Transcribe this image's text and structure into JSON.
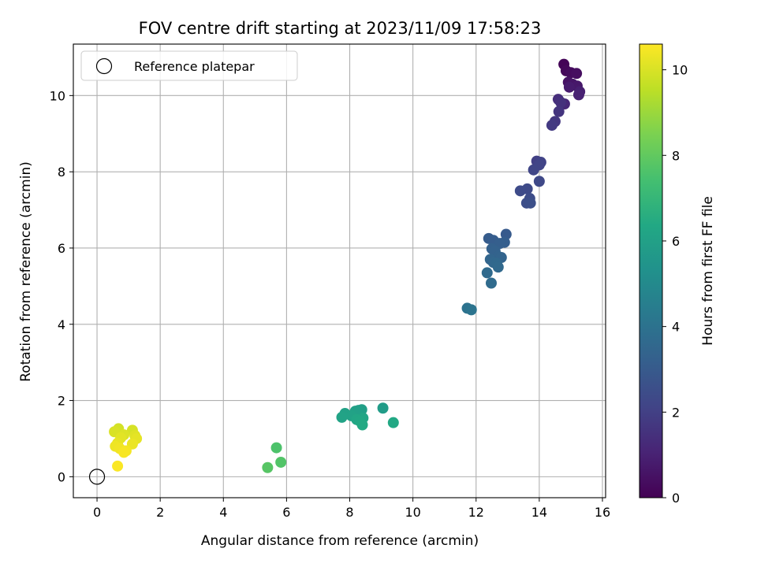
{
  "chart_data": {
    "type": "scatter",
    "title": "FOV centre drift starting at 2023/11/09 17:58:23",
    "xlabel": "Angular distance from reference (arcmin)",
    "ylabel": "Rotation from reference (arcmin)",
    "xlim": [
      -0.75,
      16.1
    ],
    "ylim": [
      -0.55,
      11.35
    ],
    "xticks": [
      0,
      2,
      4,
      6,
      8,
      10,
      12,
      14,
      16
    ],
    "yticks": [
      0,
      2,
      4,
      6,
      8,
      10
    ],
    "grid": true,
    "legend": {
      "position": "top-left",
      "entries": [
        {
          "label": "Reference platepar",
          "marker": "open-circle"
        }
      ]
    },
    "reference_point": {
      "x": 0,
      "y": 0
    },
    "colorbar": {
      "label": "Hours from first FF file",
      "colormap": "viridis",
      "range": [
        0,
        10.6
      ],
      "ticks": [
        0,
        2,
        4,
        6,
        8,
        10
      ]
    },
    "series": [
      {
        "points": [
          {
            "x": 14.78,
            "y": 10.82,
            "c": 0.1
          },
          {
            "x": 14.85,
            "y": 10.65,
            "c": 0.2
          },
          {
            "x": 15.0,
            "y": 10.6,
            "c": 0.3
          },
          {
            "x": 15.18,
            "y": 10.58,
            "c": 0.4
          },
          {
            "x": 14.92,
            "y": 10.35,
            "c": 0.5
          },
          {
            "x": 15.05,
            "y": 10.3,
            "c": 0.6
          },
          {
            "x": 15.2,
            "y": 10.25,
            "c": 0.7
          },
          {
            "x": 14.95,
            "y": 10.22,
            "c": 0.8
          },
          {
            "x": 15.28,
            "y": 10.1,
            "c": 0.9
          },
          {
            "x": 15.25,
            "y": 10.02,
            "c": 1.0
          },
          {
            "x": 14.8,
            "y": 9.78,
            "c": 1.2
          },
          {
            "x": 14.6,
            "y": 9.9,
            "c": 1.4
          },
          {
            "x": 14.68,
            "y": 9.82,
            "c": 1.5
          },
          {
            "x": 14.62,
            "y": 9.58,
            "c": 1.6
          },
          {
            "x": 14.5,
            "y": 9.32,
            "c": 1.7
          },
          {
            "x": 14.4,
            "y": 9.22,
            "c": 1.8
          },
          {
            "x": 13.92,
            "y": 8.28,
            "c": 2.0
          },
          {
            "x": 14.05,
            "y": 8.25,
            "c": 2.1
          },
          {
            "x": 14.0,
            "y": 8.18,
            "c": 2.15
          },
          {
            "x": 13.82,
            "y": 8.05,
            "c": 2.2
          },
          {
            "x": 14.0,
            "y": 7.75,
            "c": 2.3
          },
          {
            "x": 13.62,
            "y": 7.55,
            "c": 2.35
          },
          {
            "x": 13.4,
            "y": 7.5,
            "c": 2.4
          },
          {
            "x": 13.7,
            "y": 7.3,
            "c": 2.45
          },
          {
            "x": 13.6,
            "y": 7.18,
            "c": 2.5
          },
          {
            "x": 13.72,
            "y": 7.18,
            "c": 2.55
          },
          {
            "x": 12.95,
            "y": 6.36,
            "c": 3.0
          },
          {
            "x": 12.4,
            "y": 6.25,
            "c": 3.05
          },
          {
            "x": 12.55,
            "y": 6.2,
            "c": 3.1
          },
          {
            "x": 12.9,
            "y": 6.15,
            "c": 3.15
          },
          {
            "x": 12.75,
            "y": 6.12,
            "c": 3.2
          },
          {
            "x": 12.5,
            "y": 5.98,
            "c": 3.25
          },
          {
            "x": 12.6,
            "y": 5.92,
            "c": 3.3
          },
          {
            "x": 12.7,
            "y": 5.78,
            "c": 3.35
          },
          {
            "x": 12.8,
            "y": 5.75,
            "c": 3.4
          },
          {
            "x": 12.45,
            "y": 5.7,
            "c": 3.45
          },
          {
            "x": 12.55,
            "y": 5.62,
            "c": 3.5
          },
          {
            "x": 12.65,
            "y": 5.6,
            "c": 3.55
          },
          {
            "x": 12.7,
            "y": 5.5,
            "c": 3.6
          },
          {
            "x": 12.35,
            "y": 5.35,
            "c": 3.65
          },
          {
            "x": 12.48,
            "y": 5.08,
            "c": 3.7
          },
          {
            "x": 11.72,
            "y": 4.42,
            "c": 4.0
          },
          {
            "x": 11.85,
            "y": 4.38,
            "c": 4.05
          },
          {
            "x": 9.05,
            "y": 1.8,
            "c": 5.8
          },
          {
            "x": 8.38,
            "y": 1.76,
            "c": 5.9
          },
          {
            "x": 8.28,
            "y": 1.74,
            "c": 5.95
          },
          {
            "x": 8.18,
            "y": 1.72,
            "c": 6.0
          },
          {
            "x": 7.85,
            "y": 1.66,
            "c": 6.05
          },
          {
            "x": 8.05,
            "y": 1.6,
            "c": 6.1
          },
          {
            "x": 7.75,
            "y": 1.56,
            "c": 6.15
          },
          {
            "x": 8.42,
            "y": 1.54,
            "c": 6.2
          },
          {
            "x": 8.22,
            "y": 1.5,
            "c": 6.25
          },
          {
            "x": 8.32,
            "y": 1.46,
            "c": 6.3
          },
          {
            "x": 9.38,
            "y": 1.42,
            "c": 6.35
          },
          {
            "x": 8.4,
            "y": 1.36,
            "c": 6.4
          },
          {
            "x": 5.68,
            "y": 0.76,
            "c": 7.6
          },
          {
            "x": 5.82,
            "y": 0.38,
            "c": 7.7
          },
          {
            "x": 5.4,
            "y": 0.24,
            "c": 7.8
          },
          {
            "x": 0.68,
            "y": 1.26,
            "c": 9.9
          },
          {
            "x": 1.12,
            "y": 1.22,
            "c": 9.95
          },
          {
            "x": 0.55,
            "y": 1.18,
            "c": 10.0
          },
          {
            "x": 0.85,
            "y": 1.1,
            "c": 10.05
          },
          {
            "x": 1.2,
            "y": 1.08,
            "c": 10.1
          },
          {
            "x": 0.75,
            "y": 1.02,
            "c": 10.15
          },
          {
            "x": 1.25,
            "y": 1.0,
            "c": 10.2
          },
          {
            "x": 0.65,
            "y": 0.88,
            "c": 10.25
          },
          {
            "x": 1.12,
            "y": 0.86,
            "c": 10.3
          },
          {
            "x": 0.58,
            "y": 0.8,
            "c": 10.35
          },
          {
            "x": 0.72,
            "y": 0.74,
            "c": 10.4
          },
          {
            "x": 0.92,
            "y": 0.68,
            "c": 10.45
          },
          {
            "x": 0.85,
            "y": 0.64,
            "c": 10.5
          },
          {
            "x": 0.65,
            "y": 0.28,
            "c": 10.55
          }
        ]
      }
    ]
  }
}
